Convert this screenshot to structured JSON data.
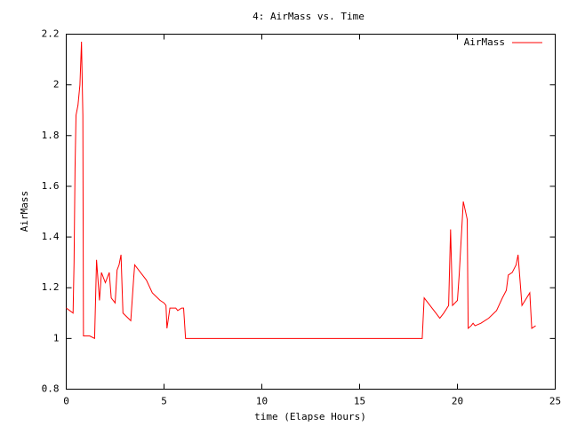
{
  "chart_data": {
    "type": "line",
    "title": "4: AirMass vs. Time",
    "x_label": "time (Elapse Hours)",
    "y_label": "AirMass",
    "x": [
      0,
      0.35,
      0.4,
      0.45,
      0.5,
      0.6,
      0.7,
      0.78,
      0.85,
      0.88,
      1.2,
      1.45,
      1.55,
      1.7,
      1.8,
      2.0,
      2.2,
      2.3,
      2.5,
      2.6,
      2.7,
      2.8,
      2.9,
      3.3,
      3.45,
      3.5,
      3.8,
      4.1,
      4.4,
      4.8,
      5.0,
      5.1,
      5.15,
      5.3,
      5.6,
      5.7,
      5.9,
      6.0,
      6.1,
      18.2,
      18.3,
      18.8,
      19.1,
      19.3,
      19.55,
      19.65,
      19.75,
      20.0,
      20.09,
      20.3,
      20.5,
      20.55,
      20.7,
      20.8,
      20.9,
      21.2,
      21.6,
      22.0,
      22.3,
      22.5,
      22.6,
      22.8,
      23.0,
      23.1,
      23.3,
      23.7,
      23.8,
      24.0
    ],
    "series": [
      {
        "name": "AirMass",
        "color": "#ff0000",
        "values": [
          1.12,
          1.1,
          1.3,
          1.67,
          1.88,
          1.92,
          2.0,
          2.17,
          1.88,
          1.01,
          1.01,
          1.0,
          1.31,
          1.15,
          1.26,
          1.22,
          1.26,
          1.16,
          1.14,
          1.27,
          1.29,
          1.33,
          1.1,
          1.07,
          1.24,
          1.29,
          1.26,
          1.23,
          1.18,
          1.15,
          1.14,
          1.13,
          1.04,
          1.12,
          1.12,
          1.11,
          1.12,
          1.12,
          1.0,
          1.0,
          1.16,
          1.11,
          1.08,
          1.1,
          1.13,
          1.43,
          1.13,
          1.15,
          1.25,
          1.54,
          1.47,
          1.04,
          1.05,
          1.06,
          1.05,
          1.06,
          1.08,
          1.11,
          1.16,
          1.19,
          1.25,
          1.26,
          1.29,
          1.33,
          1.13,
          1.18,
          1.04,
          1.05
        ]
      }
    ],
    "xlim": [
      0,
      25
    ],
    "xticks": [
      0,
      5,
      10,
      15,
      20,
      25
    ],
    "ylim": [
      0.8,
      2.2
    ],
    "yticks": [
      0.8,
      1,
      1.2,
      1.4,
      1.6,
      1.8,
      2,
      2.2
    ],
    "legend": "top-right"
  }
}
